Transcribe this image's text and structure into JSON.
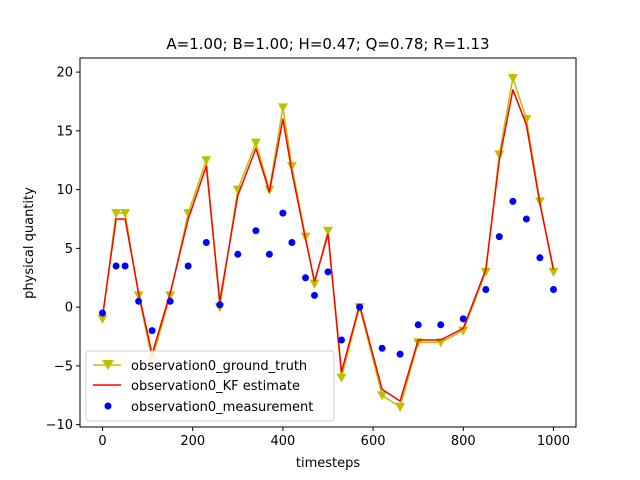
{
  "chart_data": {
    "type": "line",
    "title": "A=1.00; B=1.00; H=0.47; Q=0.78; R=1.13",
    "xlabel": "timesteps",
    "ylabel": "physical quantity",
    "xlim": [
      -50,
      1050
    ],
    "ylim": [
      -10.2,
      21.2
    ],
    "xticks": [
      0,
      200,
      400,
      600,
      800,
      1000
    ],
    "yticks": [
      -10,
      -5,
      0,
      5,
      10,
      15,
      20
    ],
    "xtick_labels": [
      "0",
      "200",
      "400",
      "600",
      "800",
      "1000"
    ],
    "ytick_labels": [
      "−10",
      "−5",
      "0",
      "5",
      "10",
      "15",
      "20"
    ],
    "series": [
      {
        "name": "observation0_ground_truth",
        "kind": "line-triangle-down",
        "color": "#bfbf00",
        "x": [
          0,
          30,
          50,
          80,
          110,
          150,
          190,
          230,
          260,
          300,
          340,
          370,
          400,
          420,
          450,
          470,
          500,
          530,
          570,
          620,
          660,
          700,
          750,
          800,
          850,
          880,
          910,
          940,
          970,
          1000
        ],
        "values": [
          -1.0,
          8.0,
          8.0,
          1.0,
          -4.5,
          1.0,
          8.0,
          12.5,
          0.0,
          10.0,
          14.0,
          10.0,
          17.0,
          12.0,
          6.0,
          2.0,
          6.5,
          -6.0,
          0.0,
          -7.5,
          -8.5,
          -3.0,
          -3.0,
          -2.0,
          3.0,
          13.0,
          19.5,
          16.0,
          9.0,
          3.0
        ]
      },
      {
        "name": "observation0_KF estimate",
        "kind": "line",
        "color": "#ff0000",
        "x": [
          0,
          30,
          50,
          80,
          110,
          150,
          190,
          230,
          260,
          300,
          340,
          370,
          400,
          420,
          450,
          470,
          500,
          530,
          570,
          620,
          660,
          700,
          750,
          800,
          850,
          880,
          910,
          940,
          970,
          1000
        ],
        "values": [
          -0.8,
          7.5,
          7.5,
          1.2,
          -4.0,
          1.2,
          7.5,
          12.0,
          0.5,
          9.5,
          13.5,
          9.8,
          16.0,
          11.5,
          5.8,
          2.2,
          6.2,
          -5.5,
          0.2,
          -7.0,
          -8.0,
          -2.8,
          -2.8,
          -1.8,
          3.2,
          12.5,
          18.5,
          15.5,
          8.8,
          3.2
        ]
      },
      {
        "name": "observation0_measurement",
        "kind": "scatter",
        "color": "#0000ff",
        "x": [
          0,
          30,
          50,
          80,
          110,
          150,
          190,
          230,
          260,
          300,
          340,
          370,
          400,
          420,
          450,
          470,
          500,
          530,
          570,
          620,
          660,
          700,
          750,
          800,
          850,
          880,
          910,
          940,
          970,
          1000
        ],
        "values": [
          -0.5,
          3.5,
          3.5,
          0.5,
          -2.0,
          0.5,
          3.5,
          5.5,
          0.2,
          4.5,
          6.5,
          4.5,
          8.0,
          5.5,
          2.5,
          1.0,
          3.0,
          -2.8,
          0.0,
          -3.5,
          -4.0,
          -1.5,
          -1.5,
          -1.0,
          1.5,
          6.0,
          9.0,
          7.5,
          4.2,
          1.5
        ]
      }
    ],
    "legend": {
      "placement": "lower-left",
      "entries": [
        "observation0_ground_truth",
        "observation0_KF estimate",
        "observation0_measurement"
      ]
    }
  }
}
